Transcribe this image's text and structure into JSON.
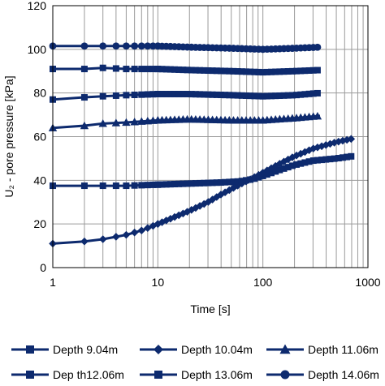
{
  "chart_data": {
    "type": "line",
    "x_scale": "log",
    "xlim": [
      1,
      1000
    ],
    "ylim": [
      0,
      120
    ],
    "x_ticks": [
      1,
      10,
      100,
      1000
    ],
    "y_ticks": [
      0,
      20,
      40,
      60,
      80,
      100,
      120
    ],
    "x_tick_labels": [
      "1",
      "10",
      "100",
      "1000"
    ],
    "y_tick_labels": [
      "0",
      "20",
      "40",
      "60",
      "80",
      "100",
      "120"
    ],
    "xlabel": "Time [s]",
    "ylabel": "U₂ - pore pressure [kPa]",
    "grid": true,
    "legend_placement": "bottom",
    "series_color": "#0d2a6e",
    "series": [
      {
        "name": "Depth 9.04m",
        "marker": "square",
        "x": [
          1,
          2,
          3,
          5,
          10,
          20,
          40,
          60,
          80,
          100,
          150,
          200,
          300,
          500,
          700
        ],
        "y": [
          37.5,
          37.5,
          37.5,
          37.5,
          38,
          38.5,
          39,
          39.5,
          40.5,
          42,
          45,
          47,
          49,
          50,
          51
        ]
      },
      {
        "name": "Depth 10.04m",
        "marker": "diamond",
        "x": [
          1,
          2,
          3,
          5,
          7,
          10,
          15,
          20,
          30,
          40,
          60,
          80,
          100,
          150,
          200,
          300,
          500,
          700
        ],
        "y": [
          11,
          12,
          13,
          15,
          17,
          20,
          23.5,
          26,
          30,
          33.5,
          38,
          41,
          43.5,
          48,
          51,
          54.5,
          57.5,
          59
        ]
      },
      {
        "name": "Depth 11.06m",
        "marker": "triangle",
        "x": [
          1,
          2,
          3,
          5,
          10,
          20,
          50,
          100,
          200,
          350
        ],
        "y": [
          64,
          65,
          66,
          66.5,
          67.5,
          68,
          67.5,
          67.5,
          68.5,
          69.5
        ]
      },
      {
        "name": "Dep th12.06m",
        "marker": "square",
        "x": [
          1,
          2,
          3,
          5,
          10,
          20,
          50,
          100,
          200,
          350
        ],
        "y": [
          77,
          78,
          78.5,
          79,
          79.5,
          79.5,
          79,
          78.5,
          79,
          80
        ]
      },
      {
        "name": "Depth 13.06m",
        "marker": "square",
        "x": [
          1,
          2,
          3,
          5,
          10,
          20,
          50,
          100,
          200,
          350
        ],
        "y": [
          91,
          91,
          91.5,
          91,
          91,
          90.5,
          90,
          89.5,
          90,
          90.5
        ]
      },
      {
        "name": "Depth 14.06m",
        "marker": "circle",
        "x": [
          1,
          2,
          3,
          5,
          10,
          20,
          50,
          100,
          200,
          350
        ],
        "y": [
          101.5,
          101.5,
          101.5,
          101.5,
          101.5,
          101,
          100.5,
          100,
          100.5,
          101
        ]
      }
    ]
  }
}
